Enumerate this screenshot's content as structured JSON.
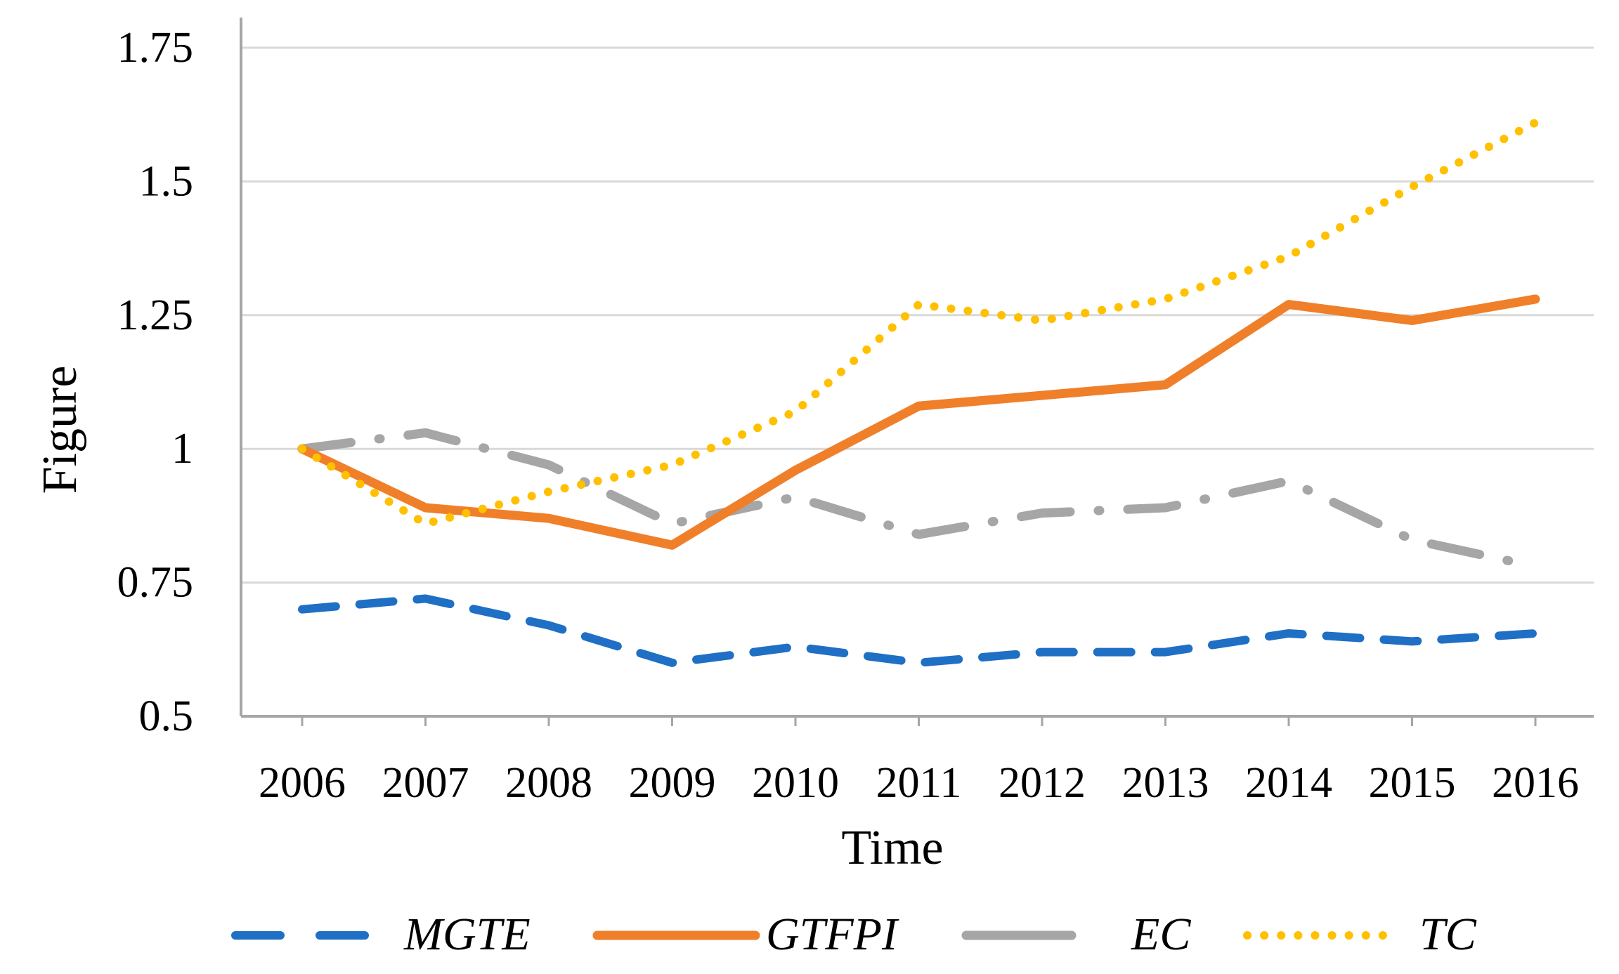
{
  "chart_data": {
    "type": "line",
    "title": "",
    "xlabel": "Time",
    "ylabel": "Figure",
    "categories": [
      "2006",
      "2007",
      "2008",
      "2009",
      "2010",
      "2011",
      "2012",
      "2013",
      "2014",
      "2015",
      "2016"
    ],
    "ylim": [
      0.5,
      1.75
    ],
    "yticks": [
      0.5,
      0.75,
      1,
      1.25,
      1.5,
      1.75
    ],
    "ytick_labels": [
      "0.5",
      "0.75",
      "1",
      "1.25",
      "1.5",
      "1.75"
    ],
    "grid": true,
    "legend_position": "bottom",
    "series": [
      {
        "name": "MGTE",
        "color": "#1F6FC5",
        "style": "dashed",
        "values": [
          0.7,
          0.72,
          0.67,
          0.6,
          0.63,
          0.6,
          0.62,
          0.62,
          0.655,
          0.64,
          0.655
        ]
      },
      {
        "name": "GTFPI",
        "color": "#F07F2A",
        "style": "solid",
        "values": [
          1.0,
          0.89,
          0.87,
          0.82,
          0.96,
          1.08,
          1.1,
          1.12,
          1.27,
          1.24,
          1.28
        ]
      },
      {
        "name": "EC",
        "color": "#A6A6A6",
        "style": "dash-dot",
        "values": [
          1.0,
          1.03,
          0.97,
          0.86,
          0.91,
          0.84,
          0.88,
          0.89,
          0.94,
          0.83,
          0.78
        ]
      },
      {
        "name": "TC",
        "color": "#FFC000",
        "style": "dotted",
        "values": [
          1.0,
          0.86,
          0.92,
          0.97,
          1.07,
          1.27,
          1.24,
          1.28,
          1.36,
          1.49,
          1.61
        ]
      }
    ]
  }
}
